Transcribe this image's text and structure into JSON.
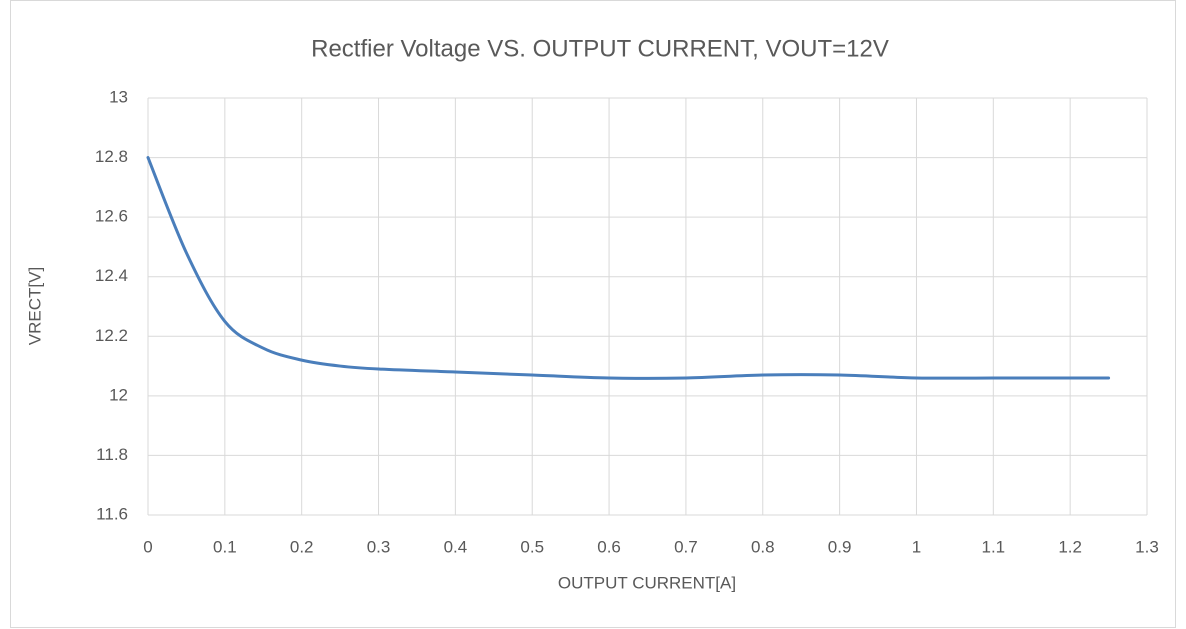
{
  "chart_data": {
    "type": "line",
    "title": "Rectfier Voltage VS. OUTPUT CURRENT, VOUT=12V",
    "xlabel": "OUTPUT CURRENT[A]",
    "ylabel": "VRECT[V]",
    "x": [
      0,
      0.05,
      0.1,
      0.15,
      0.2,
      0.25,
      0.3,
      0.4,
      0.5,
      0.6,
      0.7,
      0.8,
      0.9,
      1.0,
      1.1,
      1.2,
      1.25
    ],
    "series": [
      {
        "name": "VRECT",
        "color": "#4a7ebb",
        "values": [
          12.8,
          12.48,
          12.25,
          12.16,
          12.12,
          12.1,
          12.09,
          12.08,
          12.07,
          12.06,
          12.06,
          12.07,
          12.07,
          12.06,
          12.06,
          12.06,
          12.06
        ]
      }
    ],
    "xlim": [
      0,
      1.3
    ],
    "xticks": [
      0,
      0.1,
      0.2,
      0.3,
      0.4,
      0.5,
      0.6,
      0.7,
      0.8,
      0.9,
      1,
      1.1,
      1.2,
      1.3
    ],
    "ylim": [
      11.6,
      13
    ],
    "yticks": [
      11.6,
      11.8,
      12,
      12.2,
      12.4,
      12.6,
      12.8,
      13
    ],
    "grid": true
  }
}
